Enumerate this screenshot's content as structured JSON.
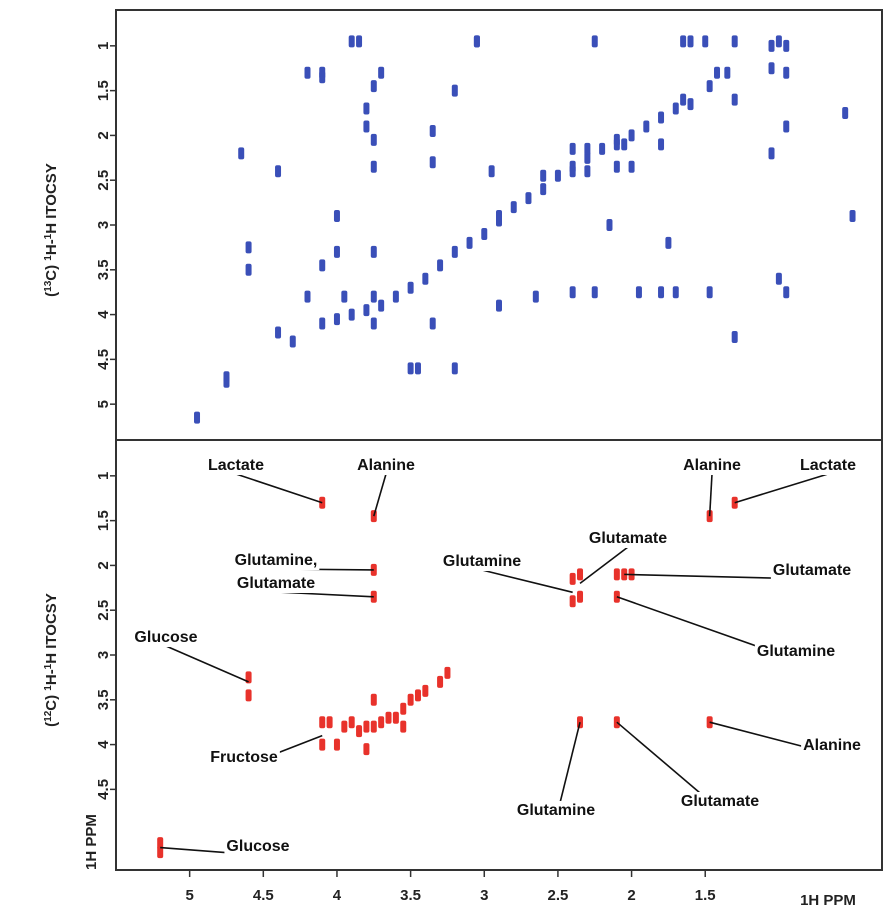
{
  "colors": {
    "tocsy": "#3a4fb8",
    "ann": "#e8322b",
    "frame": "#333333",
    "leader": "#111111"
  },
  "chart_data": [
    {
      "type": "scatter",
      "ylabel_prefix": "(",
      "ylabel_iso": "13",
      "ylabel_mid": "C)  ",
      "ylabel_h1": "1",
      "ylabel_mid2": "H-",
      "ylabel_h2": "1",
      "ylabel_tail": "H ITOCSY",
      "x_direction": "reversed",
      "xlim": [
        5.5,
        0.3
      ],
      "ylim": [
        0.6,
        5.4
      ],
      "yticks": [
        {
          "value": 1,
          "label": "1"
        },
        {
          "value": 1.5,
          "label": "1.5"
        },
        {
          "value": 2,
          "label": "2"
        },
        {
          "value": 2.5,
          "label": "2.5"
        },
        {
          "value": 3,
          "label": "3"
        },
        {
          "value": 3.5,
          "label": "3.5"
        },
        {
          "value": 4,
          "label": "4"
        },
        {
          "value": 4.5,
          "label": "4.5"
        },
        {
          "value": 5,
          "label": "5"
        }
      ],
      "series": [
        {
          "color": "#3a4fb8",
          "points": [
            [
              4.1,
              4.1
            ],
            [
              4.0,
              4.05
            ],
            [
              3.9,
              4.0
            ],
            [
              3.8,
              3.95
            ],
            [
              3.7,
              3.9
            ],
            [
              3.6,
              3.8
            ],
            [
              3.5,
              3.7
            ],
            [
              3.4,
              3.6
            ],
            [
              3.3,
              3.45
            ],
            [
              3.2,
              3.3
            ],
            [
              3.1,
              3.2
            ],
            [
              3.0,
              3.1
            ],
            [
              2.9,
              2.95
            ],
            [
              2.8,
              2.8
            ],
            [
              2.7,
              2.7
            ],
            [
              2.6,
              2.6
            ],
            [
              2.5,
              2.45
            ],
            [
              2.4,
              2.35
            ],
            [
              2.3,
              2.25
            ],
            [
              2.2,
              2.15
            ],
            [
              2.1,
              2.05
            ],
            [
              2.0,
              2.0
            ],
            [
              1.9,
              1.9
            ],
            [
              1.8,
              1.8
            ],
            [
              1.7,
              1.7
            ],
            [
              1.6,
              1.65
            ],
            [
              4.1,
              1.3
            ],
            [
              3.75,
              1.45
            ],
            [
              3.75,
              2.05
            ],
            [
              3.75,
              2.35
            ],
            [
              3.75,
              3.3
            ],
            [
              3.75,
              3.8
            ],
            [
              3.75,
              4.1
            ],
            [
              3.9,
              0.95
            ],
            [
              3.85,
              0.95
            ],
            [
              3.8,
              1.9
            ],
            [
              3.8,
              1.7
            ],
            [
              3.7,
              1.3
            ],
            [
              3.35,
              1.95
            ],
            [
              3.35,
              2.3
            ],
            [
              3.35,
              4.1
            ],
            [
              3.2,
              1.5
            ],
            [
              3.05,
              0.95
            ],
            [
              2.95,
              2.4
            ],
            [
              2.9,
              2.9
            ],
            [
              2.9,
              3.9
            ],
            [
              2.65,
              3.8
            ],
            [
              2.6,
              2.45
            ],
            [
              4.6,
              3.5
            ],
            [
              4.6,
              3.25
            ],
            [
              4.4,
              2.4
            ],
            [
              4.4,
              4.2
            ],
            [
              4.3,
              4.3
            ],
            [
              4.2,
              3.8
            ],
            [
              4.1,
              3.45
            ],
            [
              4.0,
              2.9
            ],
            [
              4.0,
              3.3
            ],
            [
              3.95,
              3.8
            ],
            [
              3.5,
              4.6
            ],
            [
              3.45,
              4.6
            ],
            [
              2.4,
              2.4
            ],
            [
              2.4,
              2.15
            ],
            [
              2.4,
              3.75
            ],
            [
              2.3,
              2.4
            ],
            [
              2.3,
              2.15
            ],
            [
              2.25,
              0.95
            ],
            [
              2.25,
              3.75
            ],
            [
              2.15,
              3.0
            ],
            [
              2.1,
              2.1
            ],
            [
              2.1,
              2.35
            ],
            [
              2.05,
              2.1
            ],
            [
              2.0,
              2.35
            ],
            [
              1.95,
              3.75
            ],
            [
              1.8,
              2.1
            ],
            [
              1.8,
              3.75
            ],
            [
              1.75,
              3.2
            ],
            [
              1.7,
              3.75
            ],
            [
              1.65,
              1.6
            ],
            [
              1.65,
              0.95
            ],
            [
              1.6,
              0.95
            ],
            [
              1.5,
              0.95
            ],
            [
              1.47,
              1.45
            ],
            [
              1.47,
              3.75
            ],
            [
              1.42,
              1.3
            ],
            [
              1.35,
              1.3
            ],
            [
              1.3,
              0.95
            ],
            [
              1.3,
              1.6
            ],
            [
              1.3,
              4.25
            ],
            [
              1.05,
              1.0
            ],
            [
              1.05,
              1.25
            ],
            [
              1.05,
              2.2
            ],
            [
              1.0,
              0.95
            ],
            [
              1.0,
              3.6
            ],
            [
              0.95,
              1.0
            ],
            [
              0.95,
              1.3
            ],
            [
              0.95,
              1.9
            ],
            [
              0.95,
              3.75
            ],
            [
              4.75,
              4.75
            ],
            [
              4.75,
              4.7
            ],
            [
              4.65,
              2.2
            ],
            [
              4.95,
              5.15
            ],
            [
              4.2,
              1.3
            ],
            [
              4.1,
              1.35
            ],
            [
              3.2,
              4.6
            ],
            [
              3.05,
              0.95
            ],
            [
              0.5,
              2.9
            ],
            [
              0.55,
              1.75
            ]
          ]
        }
      ]
    },
    {
      "type": "scatter",
      "ylabel_prefix": "(",
      "ylabel_iso": "12",
      "ylabel_mid": "C)  ",
      "ylabel_h1": "1",
      "ylabel_mid2": "H-",
      "ylabel_h2": "1",
      "ylabel_tail": "H ITOCSY",
      "x_direction": "reversed",
      "xlim": [
        5.5,
        0.3
      ],
      "ylim": [
        0.6,
        5.4
      ],
      "xticks": [
        {
          "value": 5,
          "label": "5"
        },
        {
          "value": 4.5,
          "label": "4.5"
        },
        {
          "value": 4,
          "label": "4"
        },
        {
          "value": 3.5,
          "label": "3.5"
        },
        {
          "value": 3,
          "label": "3"
        },
        {
          "value": 2.5,
          "label": "2.5"
        },
        {
          "value": 2,
          "label": "2"
        },
        {
          "value": 1.5,
          "label": "1.5"
        }
      ],
      "yticks": [
        {
          "value": 1,
          "label": "1"
        },
        {
          "value": 1.5,
          "label": "1.5"
        },
        {
          "value": 2,
          "label": "2"
        },
        {
          "value": 2.5,
          "label": "2.5"
        },
        {
          "value": 3,
          "label": "3"
        },
        {
          "value": 3.5,
          "label": "3.5"
        },
        {
          "value": 4,
          "label": "4"
        },
        {
          "value": 4.5,
          "label": "4.5"
        }
      ],
      "ytick_bottom_label": "1H PPM",
      "xlabel_corner": "1H PPM",
      "series": [
        {
          "color": "#e8322b",
          "points": [
            [
              4.1,
              1.3
            ],
            [
              3.75,
              1.45
            ],
            [
              3.75,
              2.05
            ],
            [
              3.75,
              2.35
            ],
            [
              4.6,
              3.25
            ],
            [
              4.6,
              3.45
            ],
            [
              4.1,
              3.75
            ],
            [
              4.1,
              4.0
            ],
            [
              5.2,
              5.1
            ],
            [
              5.2,
              5.2
            ],
            [
              2.4,
              2.15
            ],
            [
              2.4,
              2.4
            ],
            [
              2.35,
              2.1
            ],
            [
              2.35,
              2.35
            ],
            [
              2.1,
              2.1
            ],
            [
              2.1,
              2.35
            ],
            [
              2.05,
              2.1
            ],
            [
              2.0,
              2.1
            ],
            [
              2.35,
              3.75
            ],
            [
              2.1,
              3.75
            ],
            [
              1.47,
              1.45
            ],
            [
              1.3,
              1.3
            ],
            [
              1.47,
              3.75
            ],
            [
              4.05,
              3.75
            ],
            [
              3.95,
              3.8
            ],
            [
              3.9,
              3.75
            ],
            [
              3.85,
              3.85
            ],
            [
              3.8,
              3.8
            ],
            [
              3.75,
              3.8
            ],
            [
              3.7,
              3.75
            ],
            [
              3.65,
              3.7
            ],
            [
              3.6,
              3.7
            ],
            [
              3.55,
              3.6
            ],
            [
              3.5,
              3.5
            ],
            [
              3.45,
              3.45
            ],
            [
              3.4,
              3.4
            ],
            [
              3.3,
              3.3
            ],
            [
              3.25,
              3.2
            ],
            [
              3.75,
              3.5
            ],
            [
              3.55,
              3.8
            ],
            [
              4.0,
              4.0
            ],
            [
              3.8,
              4.05
            ]
          ]
        }
      ],
      "annotations": [
        {
          "text": "Lactate",
          "x": 4.1,
          "y": 1.3
        },
        {
          "text": "Alanine",
          "x": 3.75,
          "y": 1.45
        },
        {
          "text": "Glutamine,",
          "x": 3.75,
          "y": 2.05
        },
        {
          "text": "Glutamate",
          "x": 3.75,
          "y": 2.35
        },
        {
          "text": "Glucose",
          "x": 4.6,
          "y": 3.3
        },
        {
          "text": "Fructose",
          "x": 4.1,
          "y": 3.9
        },
        {
          "text": "Glucose",
          "x": 5.2,
          "y": 5.15
        },
        {
          "text": "Glutamine",
          "x": 2.4,
          "y": 2.3
        },
        {
          "text": "Glutamate",
          "x": 2.35,
          "y": 2.2
        },
        {
          "text": "Alanine",
          "x": 1.47,
          "y": 1.45
        },
        {
          "text": "Lactate",
          "x": 1.3,
          "y": 1.3
        },
        {
          "text": "Glutamate",
          "x": 2.05,
          "y": 2.1
        },
        {
          "text": "Glutamine",
          "x": 2.1,
          "y": 2.35
        },
        {
          "text": "Alanine",
          "x": 1.47,
          "y": 3.75
        },
        {
          "text": "Glutamine",
          "x": 2.35,
          "y": 3.75
        },
        {
          "text": "Glutamate",
          "x": 2.1,
          "y": 3.75
        }
      ]
    }
  ]
}
